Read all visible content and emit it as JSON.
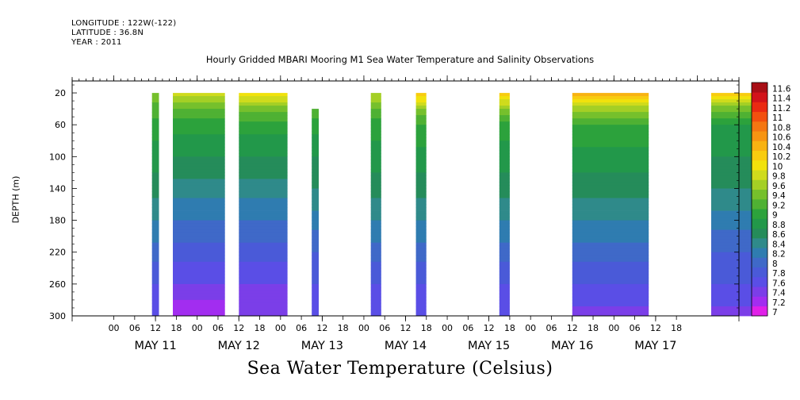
{
  "header": {
    "longitude": "LONGITUDE : 122W(-122)",
    "latitude": "LATITUDE : 36.8N",
    "year": "YEAR : 2011",
    "title": "Hourly Gridded MBARI Mooring M1 Sea Water Temperature and Salinity Observations"
  },
  "footer_title": "Sea Water Temperature (Celsius)",
  "chart_data": {
    "type": "heatmap",
    "title": "Hourly Gridded MBARI Mooring M1 Sea Water Temperature and Salinity Observations",
    "xlabel": "",
    "ylabel": "DEPTH (m)",
    "colorbar_label": "Sea Water Temperature (Celsius)",
    "x_hour_ticks": [
      "00",
      "06",
      "12",
      "18",
      "00",
      "06",
      "12",
      "18",
      "00",
      "06",
      "12",
      "18",
      "00",
      "06",
      "12",
      "18",
      "00",
      "06",
      "12",
      "18",
      "00",
      "06",
      "12",
      "18",
      "00",
      "06",
      "12",
      "18"
    ],
    "x_day_labels": [
      "MAY 11",
      "MAY 12",
      "MAY 13",
      "MAY 14",
      "MAY 15",
      "MAY 16",
      "MAY 17"
    ],
    "x_range_hours": [
      -12,
      180
    ],
    "y_ticks": [
      20,
      60,
      100,
      140,
      180,
      220,
      260,
      300
    ],
    "ylim": [
      300,
      5
    ],
    "y_inverted": true,
    "colorbar_levels": [
      7,
      7.2,
      7.4,
      7.6,
      7.8,
      8,
      8.2,
      8.4,
      8.6,
      8.8,
      9,
      9.2,
      9.4,
      9.6,
      9.8,
      10,
      10.2,
      10.4,
      10.6,
      10.8,
      11,
      11.2,
      11.4,
      11.6
    ],
    "colorbar_labels": [
      "7",
      "7.2",
      "7.4",
      "7.6",
      "7.8",
      "8",
      "8.2",
      "8.4",
      "8.6",
      "8.8",
      "9",
      "9.2",
      "9.4",
      "9.6",
      "9.8",
      "10",
      "10.2",
      "10.4",
      "10.6",
      "10.8",
      "11",
      "11.2",
      "11.4",
      "11.6"
    ],
    "colorbar_colors": [
      "#e020e8",
      "#a22df0",
      "#7b3ee8",
      "#5a4ee6",
      "#4a5ad8",
      "#3f69c8",
      "#2f7cb0",
      "#2f8a8a",
      "#258c5a",
      "#22984a",
      "#2ca23c",
      "#4fb133",
      "#76c02c",
      "#a4cf25",
      "#cfdb1c",
      "#f1e20c",
      "#f8cc10",
      "#f8b212",
      "#f79412",
      "#f47612",
      "#f2500f",
      "#ea2a12",
      "#d2131a",
      "#a80f16"
    ],
    "data_blocks": [
      {
        "start_hour": 11,
        "end_hour": 13,
        "top_depth": 20,
        "temps": [
          [
            20,
            9.6
          ],
          [
            40,
            9.3
          ],
          [
            60,
            9.1
          ],
          [
            100,
            8.9
          ],
          [
            140,
            8.7
          ],
          [
            180,
            8.4
          ],
          [
            220,
            8.1
          ],
          [
            260,
            7.8
          ],
          [
            300,
            7.6
          ]
        ]
      },
      {
        "start_hour": 17,
        "end_hour": 32,
        "top_depth": 20,
        "temps": [
          [
            20,
            9.9
          ],
          [
            40,
            9.4
          ],
          [
            60,
            9.1
          ],
          [
            100,
            8.8
          ],
          [
            140,
            8.5
          ],
          [
            180,
            8.2
          ],
          [
            220,
            7.9
          ],
          [
            260,
            7.6
          ],
          [
            300,
            7.2
          ]
        ]
      },
      {
        "start_hour": 36,
        "end_hour": 50,
        "top_depth": 20,
        "temps": [
          [
            20,
            10.1
          ],
          [
            40,
            9.5
          ],
          [
            60,
            9.1
          ],
          [
            100,
            8.8
          ],
          [
            140,
            8.5
          ],
          [
            180,
            8.2
          ],
          [
            220,
            7.9
          ],
          [
            260,
            7.6
          ],
          [
            300,
            7.4
          ]
        ]
      },
      {
        "start_hour": 57,
        "end_hour": 59,
        "top_depth": 40,
        "temps": [
          [
            40,
            9.4
          ],
          [
            60,
            9.1
          ],
          [
            100,
            8.8
          ],
          [
            140,
            8.6
          ],
          [
            180,
            8.3
          ],
          [
            220,
            8.0
          ],
          [
            260,
            7.8
          ],
          [
            300,
            7.6
          ]
        ]
      },
      {
        "start_hour": 74,
        "end_hour": 77,
        "top_depth": 20,
        "temps": [
          [
            20,
            9.8
          ],
          [
            40,
            9.4
          ],
          [
            60,
            9.1
          ],
          [
            100,
            8.9
          ],
          [
            140,
            8.7
          ],
          [
            180,
            8.4
          ],
          [
            220,
            8.1
          ],
          [
            260,
            7.8
          ],
          [
            300,
            7.6
          ]
        ]
      },
      {
        "start_hour": 87,
        "end_hour": 90,
        "top_depth": 20,
        "temps": [
          [
            20,
            10.4
          ],
          [
            40,
            9.6
          ],
          [
            60,
            9.2
          ],
          [
            100,
            8.9
          ],
          [
            140,
            8.7
          ],
          [
            180,
            8.4
          ],
          [
            220,
            8.1
          ],
          [
            260,
            7.8
          ],
          [
            300,
            7.6
          ]
        ]
      },
      {
        "start_hour": 111,
        "end_hour": 114,
        "top_depth": 20,
        "temps": [
          [
            20,
            10.3
          ],
          [
            40,
            9.6
          ],
          [
            60,
            9.1
          ],
          [
            100,
            8.9
          ],
          [
            140,
            8.7
          ],
          [
            180,
            8.4
          ],
          [
            220,
            8.1
          ],
          [
            260,
            7.8
          ],
          [
            300,
            7.6
          ]
        ]
      },
      {
        "start_hour": 132,
        "end_hour": 154,
        "top_depth": 20,
        "temps": [
          [
            20,
            10.6
          ],
          [
            30,
            10.1
          ],
          [
            40,
            9.7
          ],
          [
            60,
            9.2
          ],
          [
            100,
            8.9
          ],
          [
            140,
            8.7
          ],
          [
            180,
            8.4
          ],
          [
            220,
            8.1
          ],
          [
            260,
            7.8
          ],
          [
            300,
            7.5
          ]
        ]
      },
      {
        "start_hour": 172,
        "end_hour": 184,
        "top_depth": 20,
        "temps": [
          [
            20,
            10.4
          ],
          [
            40,
            9.5
          ],
          [
            60,
            9.0
          ],
          [
            100,
            8.8
          ],
          [
            140,
            8.6
          ],
          [
            180,
            8.3
          ],
          [
            220,
            8.0
          ],
          [
            260,
            7.8
          ],
          [
            300,
            7.5
          ]
        ]
      }
    ]
  }
}
